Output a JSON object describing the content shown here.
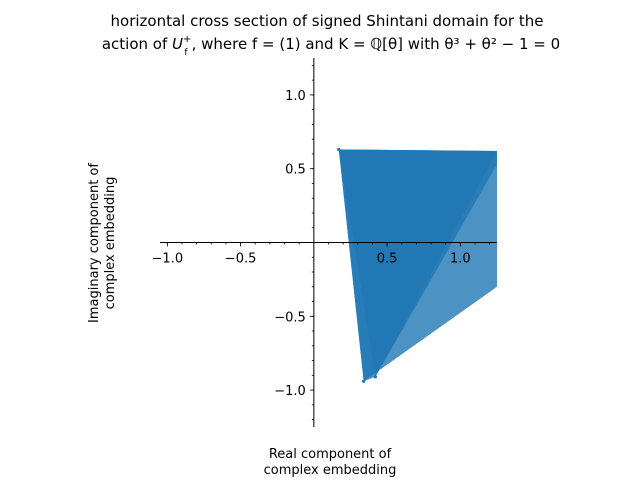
{
  "chart_data": {
    "type": "area",
    "title": {
      "line1": "horizontal cross section of signed Shintani domain for the",
      "line2_prefix": "action of ",
      "line2_sup": "+",
      "line2_sub": "f",
      "line2_mid": ", where ",
      "line2_cond": "f = (1)",
      "line2_and": " and ",
      "line2_field": "K = ℚ[θ] with ",
      "line2_eq": "θ³ + θ² − 1 = 0",
      "symbol_U": "U"
    },
    "xlabel": [
      "Real component of",
      "complex embedding"
    ],
    "ylabel": [
      "Imaginary component of",
      "complex embedding"
    ],
    "xlim": [
      -1.05,
      1.25
    ],
    "ylim": [
      -1.25,
      1.25
    ],
    "x_ticks": [
      {
        "value": -1.0,
        "label": "−1.0"
      },
      {
        "value": -0.5,
        "label": "−0.5"
      },
      {
        "value": 0.5,
        "label": "0.5"
      },
      {
        "value": 1.0,
        "label": "1.0"
      }
    ],
    "y_ticks": [
      {
        "value": -1.0,
        "label": "−1.0"
      },
      {
        "value": -0.5,
        "label": "−0.5"
      },
      {
        "value": 0.5,
        "label": "0.5"
      },
      {
        "value": 1.0,
        "label": "1.0"
      }
    ],
    "minor_step": 0.1,
    "color": "#1f77b4",
    "series": [
      {
        "values": [
          [
            0.17,
            0.63
          ],
          [
            0.34,
            -0.94
          ],
          [
            1.25,
            -0.3
          ],
          [
            1.25,
            0.62
          ]
        ]
      },
      {
        "values": [
          [
            0.17,
            0.63
          ],
          [
            0.42,
            -0.91
          ],
          [
            1.25,
            0.53
          ],
          [
            1.25,
            0.62
          ]
        ]
      },
      {
        "values": [
          [
            0.17,
            0.63
          ],
          [
            0.34,
            -0.94
          ],
          [
            0.42,
            -0.91
          ],
          [
            1.25,
            0.62
          ]
        ]
      }
    ],
    "points": [
      [
        0.17,
        0.63
      ],
      [
        0.34,
        -0.94
      ],
      [
        0.42,
        -0.91
      ]
    ]
  }
}
